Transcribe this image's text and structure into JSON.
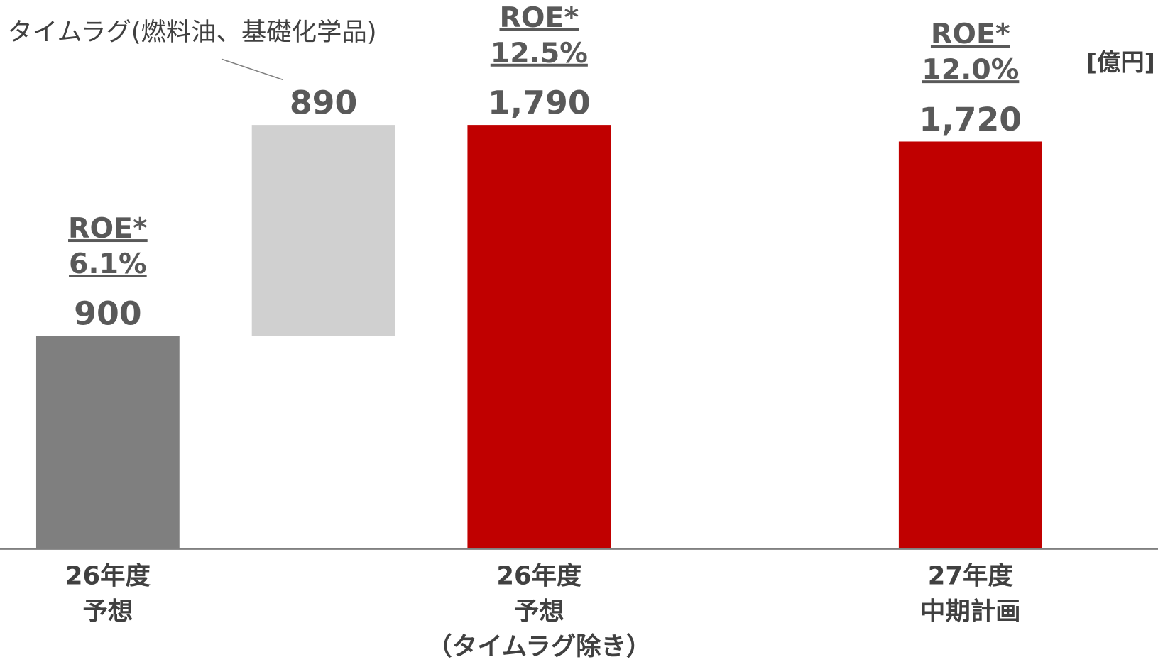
{
  "chart_data": {
    "type": "waterfall",
    "categories": [
      "26年度\n予想",
      null,
      "26年度\n予想\n（タイムラグ除き）",
      null,
      "27年度\n中期計画"
    ],
    "values": [
      900,
      890,
      1790,
      null,
      1720
    ],
    "value_labels": [
      "900",
      "890",
      "1,790",
      null,
      "1,720"
    ],
    "measure": [
      "absolute",
      "relative",
      "absolute",
      null,
      "absolute"
    ],
    "colors": [
      "#7f7f7f",
      "#d0d0d0",
      "#c00000",
      null,
      "#c00000"
    ],
    "roe_labels": [
      [
        "ROE*",
        "6.1%"
      ],
      null,
      [
        "ROE*",
        "12.5%"
      ],
      null,
      [
        "ROE*",
        "12.0%"
      ]
    ],
    "annotation": "タイムラグ(燃料油、基礎化学品)",
    "unit": "[億円]",
    "ylim": [
      0,
      1900
    ]
  }
}
